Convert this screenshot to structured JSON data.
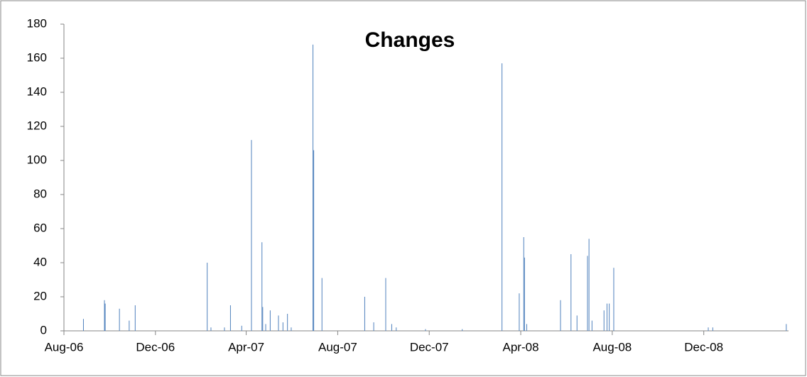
{
  "chart_data": {
    "type": "bar",
    "title": "Changes",
    "color": "#4f81bd",
    "x": [
      26,
      54,
      55,
      74,
      87,
      95,
      191,
      196,
      214,
      222,
      237,
      250,
      264,
      265,
      269,
      275,
      286,
      292,
      298,
      303,
      332,
      333,
      344,
      401,
      413,
      429,
      437,
      443,
      482,
      531,
      584,
      607,
      613,
      614,
      617,
      662,
      676,
      684,
      698,
      700,
      704,
      720,
      724,
      727,
      733,
      859,
      865,
      963
    ],
    "values": [
      7,
      18,
      16,
      13,
      6,
      15,
      40,
      2,
      2,
      15,
      3,
      112,
      52,
      14,
      4,
      12,
      9,
      5,
      10,
      2,
      168,
      106,
      31,
      20,
      5,
      31,
      4,
      2,
      1,
      1,
      157,
      22,
      55,
      43,
      4,
      18,
      45,
      9,
      44,
      54,
      6,
      12,
      16,
      16,
      37,
      2,
      2,
      4
    ],
    "xlim": [
      0,
      966
    ],
    "xticks": [
      {
        "value": 0,
        "label": "Aug-06"
      },
      {
        "value": 122,
        "label": "Dec-06"
      },
      {
        "value": 243,
        "label": "Apr-07"
      },
      {
        "value": 365,
        "label": "Aug-07"
      },
      {
        "value": 487,
        "label": "Dec-07"
      },
      {
        "value": 609,
        "label": "Apr-08"
      },
      {
        "value": 731,
        "label": "Aug-08"
      },
      {
        "value": 853,
        "label": "Dec-08"
      }
    ],
    "ylim": [
      0,
      180
    ],
    "yticks": [
      0,
      20,
      40,
      60,
      80,
      100,
      120,
      140,
      160,
      180
    ],
    "grid": false
  }
}
